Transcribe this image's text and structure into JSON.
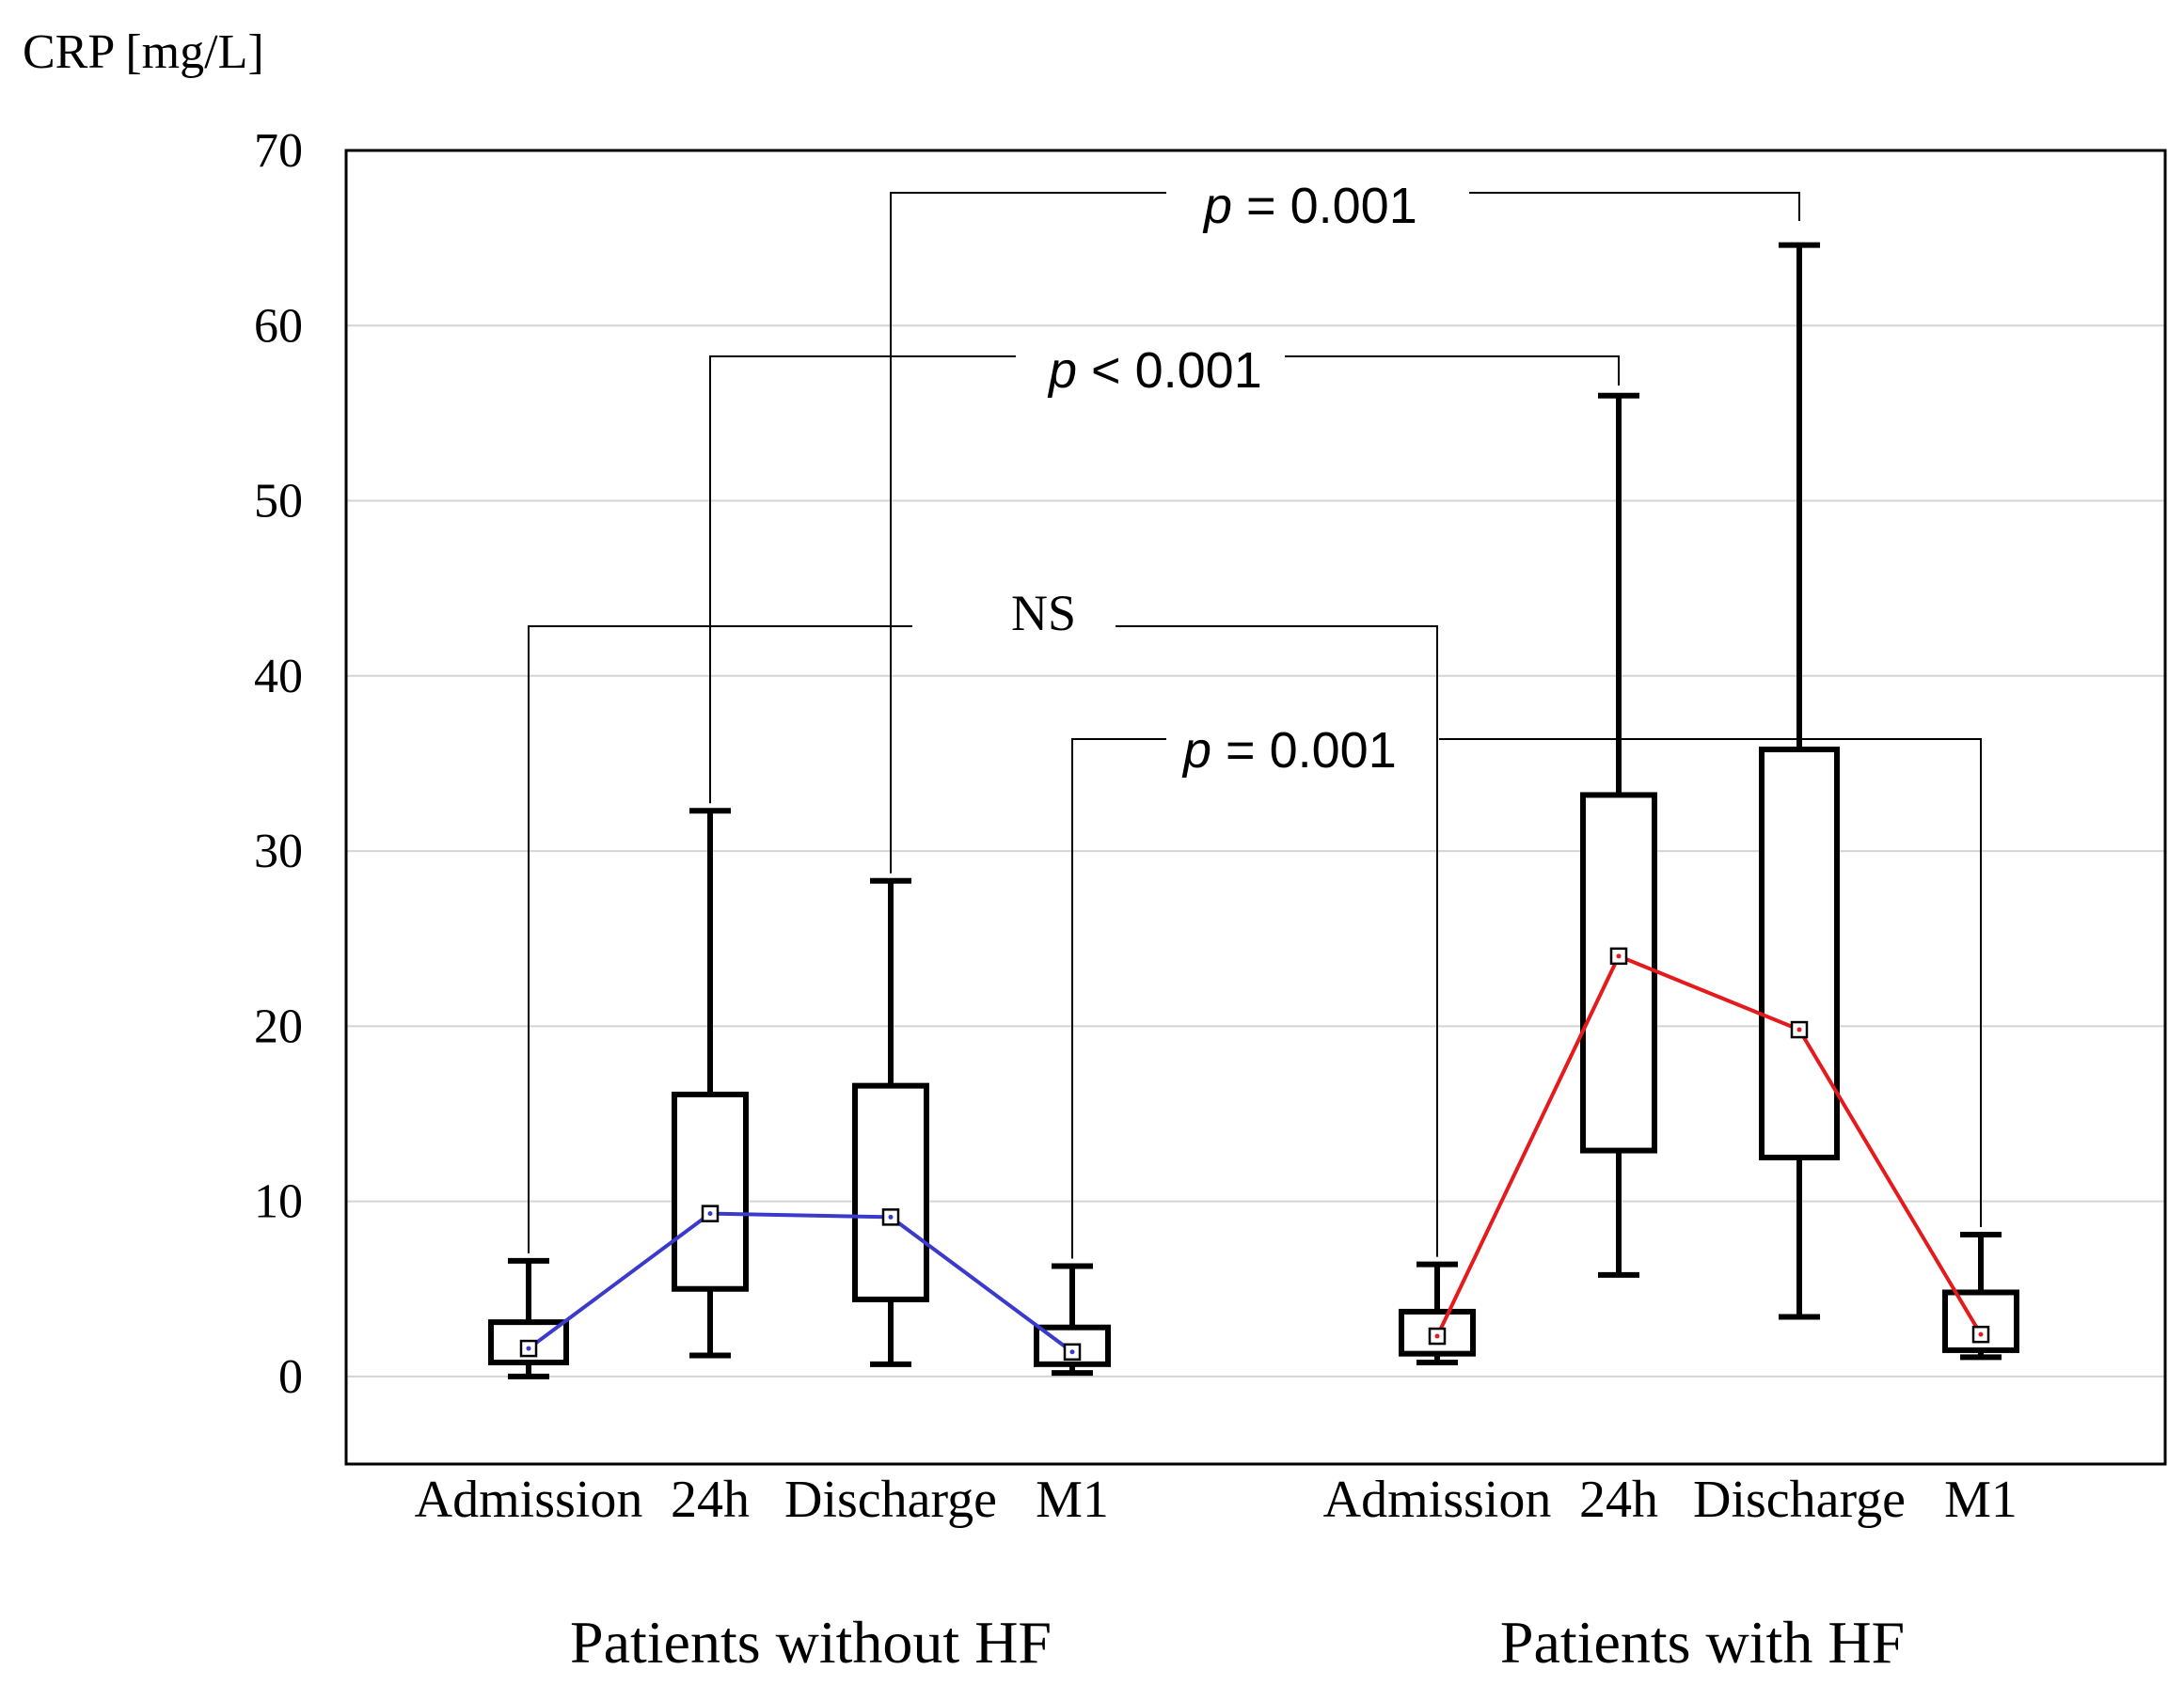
{
  "chart_data": {
    "type": "box",
    "ylabel": "CRP [mg/L]",
    "ylim": [
      -5,
      70
    ],
    "yticks": [
      0,
      10,
      20,
      30,
      40,
      50,
      60,
      70
    ],
    "grid": true,
    "groups": [
      {
        "name": "Patients without HF",
        "line_color": "#3a3acd",
        "categories": [
          "Admission",
          "24h",
          "Discharge",
          "M1"
        ],
        "boxes": [
          {
            "whisker_low": 0,
            "q1": 0.8,
            "median": 1.6,
            "q3": 3.1,
            "whisker_high": 6.6
          },
          {
            "whisker_low": 1.2,
            "q1": 5.0,
            "median": 9.3,
            "q3": 16.1,
            "whisker_high": 32.3
          },
          {
            "whisker_low": 0.7,
            "q1": 4.4,
            "median": 9.1,
            "q3": 16.6,
            "whisker_high": 28.3
          },
          {
            "whisker_low": 0.2,
            "q1": 0.7,
            "median": 1.4,
            "q3": 2.8,
            "whisker_high": 6.3
          }
        ]
      },
      {
        "name": "Patients with HF",
        "line_color": "#e41a1c",
        "categories": [
          "Admission",
          "24h",
          "Discharge",
          "M1"
        ],
        "boxes": [
          {
            "whisker_low": 0.8,
            "q1": 1.3,
            "median": 2.3,
            "q3": 3.7,
            "whisker_high": 6.4
          },
          {
            "whisker_low": 5.8,
            "q1": 12.9,
            "median": 24.0,
            "q3": 33.2,
            "whisker_high": 56.0
          },
          {
            "whisker_low": 3.4,
            "q1": 12.5,
            "median": 19.8,
            "q3": 35.8,
            "whisker_high": 64.6
          },
          {
            "whisker_low": 1.1,
            "q1": 1.5,
            "median": 2.4,
            "q3": 4.8,
            "whisker_high": 8.1
          }
        ]
      }
    ],
    "annotations": [
      {
        "p_label": "p",
        "rest": " = 0.001",
        "from": [
          0,
          2
        ],
        "to": [
          1,
          2
        ]
      },
      {
        "p_label": "p",
        "rest": " < 0.001",
        "from": [
          0,
          1
        ],
        "to": [
          1,
          1
        ]
      },
      {
        "p_label": "",
        "rest": "NS",
        "from": [
          0,
          0
        ],
        "to": [
          1,
          0
        ]
      },
      {
        "p_label": "p",
        "rest": " = 0.001",
        "from": [
          0,
          3
        ],
        "to": [
          1,
          3
        ]
      }
    ]
  }
}
